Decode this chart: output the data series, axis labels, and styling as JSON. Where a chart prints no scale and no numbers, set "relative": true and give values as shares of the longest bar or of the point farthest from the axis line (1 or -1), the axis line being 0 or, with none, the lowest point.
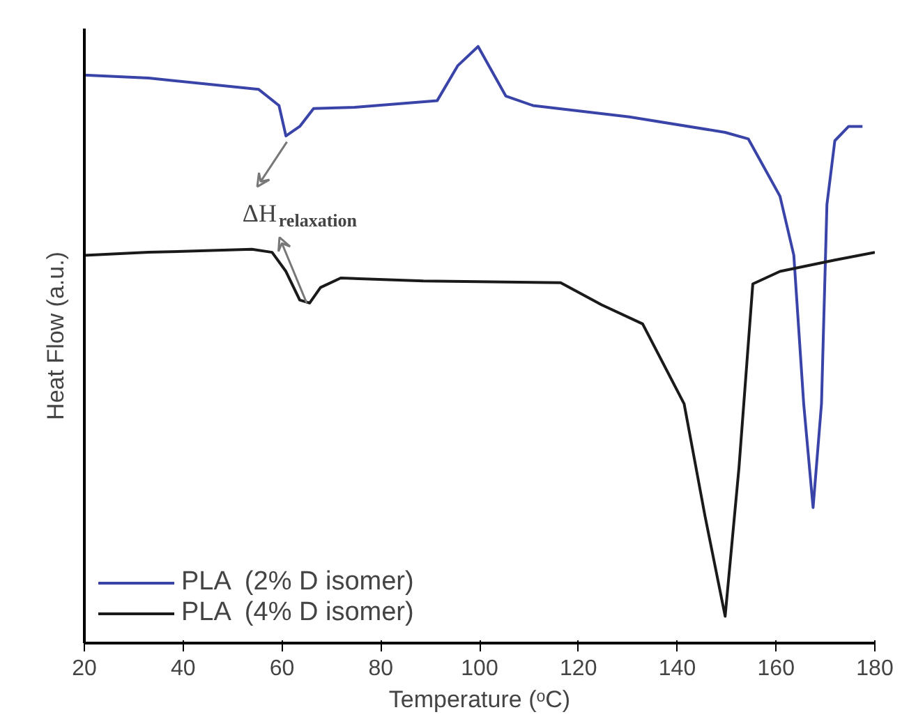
{
  "chart_data": {
    "type": "line",
    "relative": true,
    "xlabel": "Temperature (ᵒC)",
    "ylabel": "Heat Flow (a.u.)",
    "xlim": [
      20,
      180
    ],
    "xticks": [
      20,
      40,
      60,
      80,
      100,
      120,
      140,
      160,
      180
    ],
    "legend": "bottom left",
    "grid": false,
    "marker": "none",
    "line_style": "solid",
    "annotations": [
      {
        "text": "ΔH$_{relaxation}$",
        "x": 61,
        "y": 0.85
      }
    ],
    "series": [
      {
        "name": "PLA  (2% D isomer)",
        "color": "#3a44a8",
        "x": [
          20,
          33,
          55.3,
          59.4,
          60.8,
          63.6,
          66.4,
          74.7,
          91.4,
          95.6,
          99.7,
          105.3,
          110.8,
          130.3,
          149.7,
          154.4,
          160.8,
          163.6,
          165.6,
          167.5,
          169.2,
          170.3,
          171.9,
          174.7,
          177.5
        ],
        "values": [
          0.952,
          0.947,
          0.928,
          0.901,
          0.85,
          0.866,
          0.896,
          0.898,
          0.909,
          0.968,
          1.0,
          0.917,
          0.901,
          0.882,
          0.856,
          0.845,
          0.749,
          0.65,
          0.401,
          0.227,
          0.401,
          0.735,
          0.842,
          0.866,
          0.866
        ]
      },
      {
        "name": "PLA  (4% D isomer)",
        "color": "#1a1a1a",
        "x": [
          20,
          33,
          53.9,
          58,
          60.8,
          63.6,
          65.6,
          67.8,
          71.9,
          88.6,
          116.4,
          124.7,
          133,
          141.4,
          145.6,
          149.7,
          152.5,
          155.3,
          160.8,
          171.9,
          180
        ],
        "values": [
          0.65,
          0.655,
          0.66,
          0.655,
          0.623,
          0.575,
          0.57,
          0.596,
          0.612,
          0.607,
          0.604,
          0.567,
          0.535,
          0.401,
          0.214,
          0.045,
          0.294,
          0.602,
          0.623,
          0.642,
          0.655
        ]
      }
    ]
  }
}
